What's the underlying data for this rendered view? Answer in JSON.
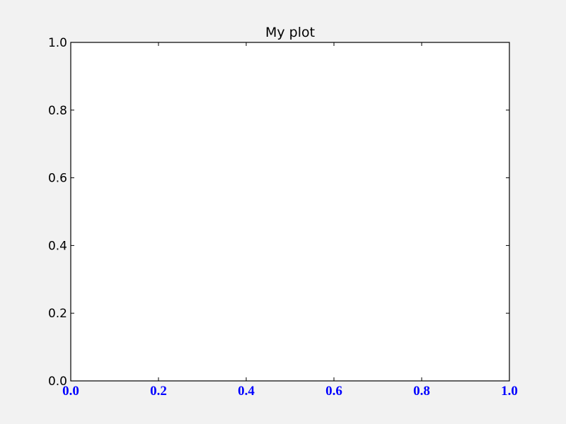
{
  "chart_data": {
    "type": "line",
    "title": "My plot",
    "xlabel": "",
    "ylabel": "",
    "xlim": [
      0.0,
      1.0
    ],
    "ylim": [
      0.0,
      1.0
    ],
    "x_ticks": [
      "0.0",
      "0.2",
      "0.4",
      "0.6",
      "0.8",
      "1.0"
    ],
    "y_ticks": [
      "0.0",
      "0.2",
      "0.4",
      "0.6",
      "0.8",
      "1.0"
    ],
    "x_tick_color": "#0000ff",
    "y_tick_color": "#000000",
    "series": [],
    "grid": false,
    "background": "#ffffff",
    "figure_background": "#f2f2f2"
  }
}
